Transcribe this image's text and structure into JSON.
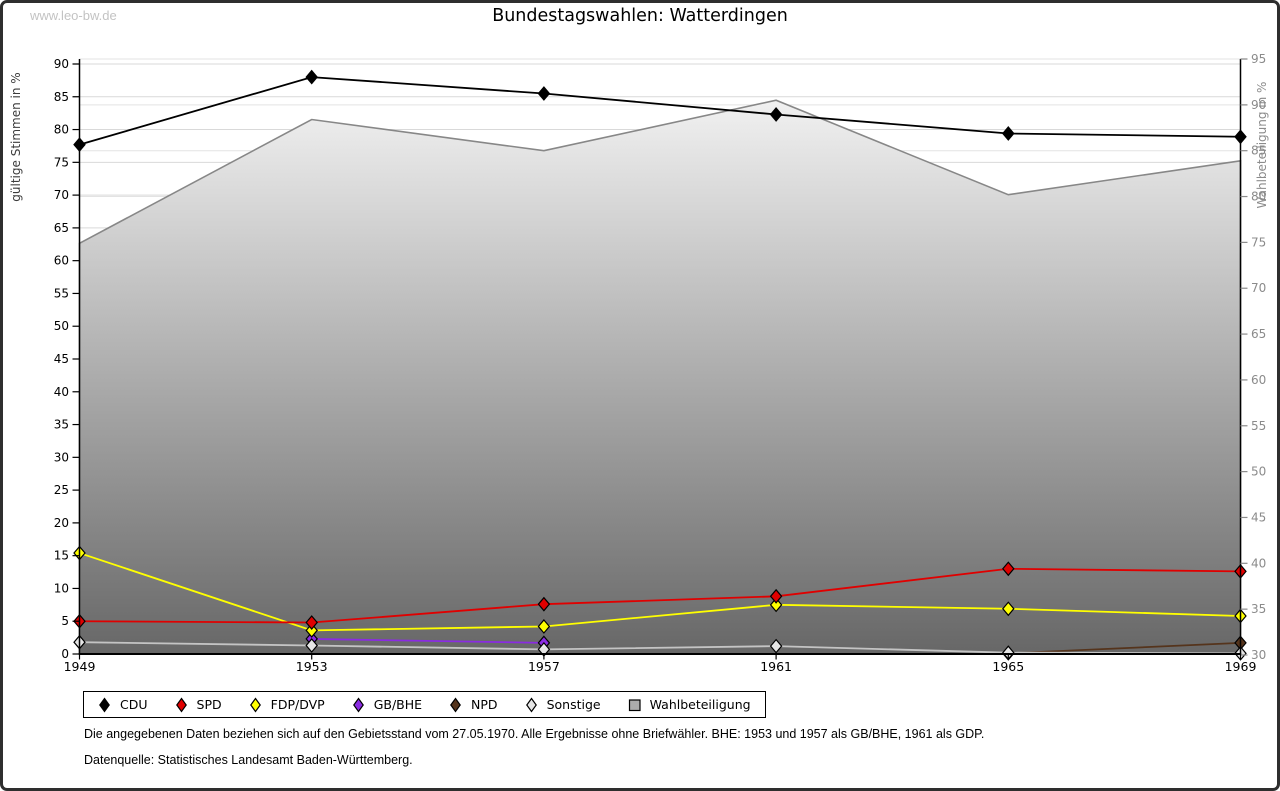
{
  "watermark": "www.leo-bw.de",
  "title": "Bundestagswahlen: Watterdingen",
  "footnotes": {
    "line1": "Die angegebenen Daten beziehen sich auf den Gebietsstand vom 27.05.1970. Alle Ergebnisse ohne Briefwähler. BHE: 1953 und 1957 als GB/BHE, 1961 als GDP.",
    "line2": "Datenquelle: Statistisches Landesamt Baden-Württemberg."
  },
  "chart_data": {
    "type": "line",
    "title": "Bundestagswahlen: Watterdingen",
    "x": [
      1949,
      1953,
      1957,
      1961,
      1965,
      1969
    ],
    "left_axis": {
      "label": "gültige Stimmen in %",
      "min": 0,
      "max": 90,
      "step": 5,
      "ticks": [
        0,
        5,
        10,
        15,
        20,
        25,
        30,
        35,
        40,
        45,
        50,
        55,
        60,
        65,
        70,
        75,
        80,
        85,
        90
      ]
    },
    "right_axis": {
      "label": "Wahlbeteiligung in %",
      "min": 30,
      "max": 95,
      "step": 5,
      "ticks": [
        30,
        35,
        40,
        45,
        50,
        55,
        60,
        65,
        70,
        75,
        80,
        85,
        90,
        95
      ]
    },
    "grid": true,
    "legend_position": "bottom",
    "series": [
      {
        "name": "CDU",
        "axis": "left",
        "kind": "line",
        "marker": "diamond",
        "color": "#000000",
        "fill": "#000000",
        "values": [
          77.7,
          88.0,
          85.5,
          82.3,
          79.4,
          78.9
        ]
      },
      {
        "name": "SPD",
        "axis": "left",
        "kind": "line",
        "marker": "diamond",
        "color": "#e00000",
        "fill": "#e00000",
        "values": [
          5.0,
          4.8,
          7.6,
          8.8,
          13.0,
          12.6
        ]
      },
      {
        "name": "FDP/DVP",
        "axis": "left",
        "kind": "line",
        "marker": "diamond",
        "color": "#ffff00",
        "fill": "#ffff00",
        "values": [
          15.4,
          3.6,
          4.2,
          7.5,
          6.9,
          5.8
        ]
      },
      {
        "name": "GB/BHE",
        "axis": "left",
        "kind": "line",
        "marker": "diamond",
        "color": "#8a2be2",
        "fill": "#8a2be2",
        "values": [
          null,
          2.3,
          1.7,
          null,
          null,
          null
        ]
      },
      {
        "name": "NPD",
        "axis": "left",
        "kind": "line",
        "marker": "diamond",
        "color": "#55341c",
        "fill": "#55341c",
        "values": [
          null,
          null,
          null,
          null,
          0.1,
          1.7
        ]
      },
      {
        "name": "Sonstige",
        "axis": "left",
        "kind": "line",
        "marker": "diamond",
        "color": "#c4c4c4",
        "fill": "#e6e6e6",
        "values": [
          1.8,
          1.3,
          0.7,
          1.2,
          0.2,
          0.1
        ]
      },
      {
        "name": "Wahlbeteiligung",
        "axis": "right",
        "kind": "area",
        "marker": "square",
        "color": "#878787",
        "fill": "#ababab",
        "gradient_top": "#fbfbfb",
        "gradient_bottom": "#676767",
        "values": [
          74.9,
          88.4,
          85.0,
          90.5,
          80.2,
          83.9
        ]
      }
    ]
  }
}
